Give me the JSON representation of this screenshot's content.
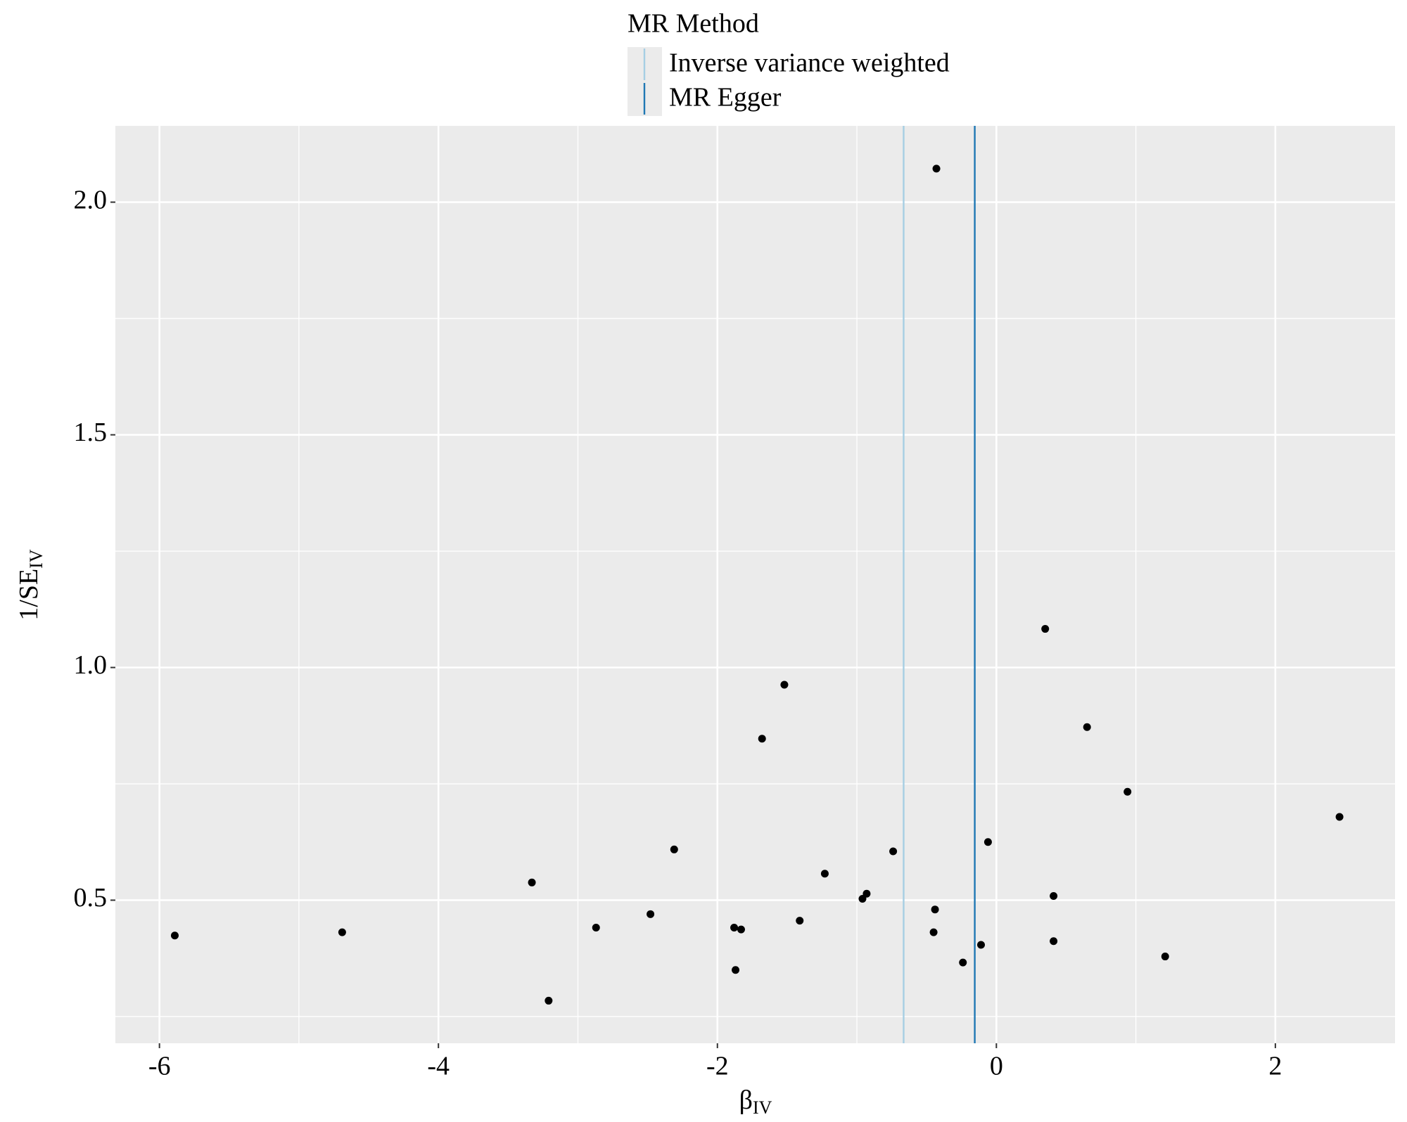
{
  "chart_data": {
    "type": "scatter",
    "xlabel": "β",
    "xlabel_sub": "IV",
    "ylabel": "1/SE",
    "ylabel_sub": "IV",
    "x": [
      -5.89,
      -4.69,
      -3.33,
      -3.21,
      -2.87,
      -2.48,
      -2.31,
      -1.88,
      -1.83,
      -1.87,
      -1.68,
      -1.52,
      -1.41,
      -1.23,
      -0.96,
      -0.93,
      -0.74,
      -0.43,
      -0.44,
      -0.45,
      -0.24,
      -0.11,
      -0.06,
      0.35,
      0.41,
      0.41,
      0.65,
      0.94,
      1.21,
      2.46
    ],
    "values": [
      0.424,
      0.431,
      0.538,
      0.284,
      0.441,
      0.47,
      0.609,
      0.441,
      0.437,
      0.35,
      0.847,
      0.963,
      0.456,
      0.557,
      0.503,
      0.514,
      0.605,
      2.072,
      0.48,
      0.431,
      0.366,
      0.404,
      0.625,
      1.083,
      0.509,
      0.412,
      0.872,
      0.733,
      0.379,
      0.679
    ],
    "color": "#000000",
    "lines": [
      {
        "name": "Inverse variance weighted",
        "color": "#a6cee3",
        "x": -0.665
      },
      {
        "name": "MR Egger",
        "color": "#1f78b4",
        "x": -0.155
      }
    ],
    "legend_title": "MR Method",
    "legend_position": "top",
    "xlim": [
      -6.316,
      2.858
    ],
    "xticks": [
      -6,
      -4,
      -2,
      0,
      2
    ],
    "ylim": [
      0.1925,
      2.164
    ],
    "yticks": [
      {
        "value": 0.5,
        "label": "0.5"
      },
      {
        "value": 1.0,
        "label": "1.0"
      },
      {
        "value": 1.5,
        "label": "1.5"
      },
      {
        "value": 2.0,
        "label": "2.0"
      }
    ],
    "grid": true
  }
}
